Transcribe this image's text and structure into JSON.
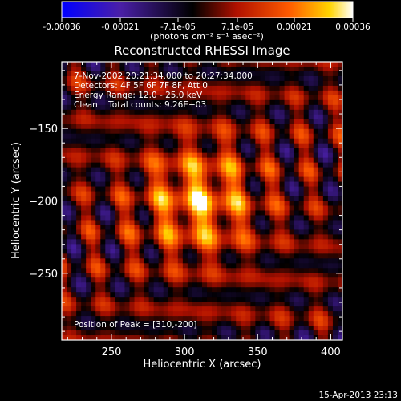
{
  "chart_data": {
    "type": "heatmap",
    "title": "Reconstructed RHESSI Image",
    "xlabel": "Heliocentric X (arcsec)",
    "ylabel": "Heliocentric Y (arcsec)",
    "xlim": [
      216,
      408
    ],
    "ylim": [
      -296,
      -104
    ],
    "x_ticks": [
      250,
      300,
      350,
      400
    ],
    "y_ticks": [
      -150,
      -200,
      -250
    ],
    "colorbar": {
      "units_label": "(photons cm⁻² s⁻¹ asec⁻²)",
      "ticks": [
        "-0.00036",
        "-0.00021",
        "-7.1e-05",
        "7.1e-05",
        "0.00021",
        "0.00036"
      ],
      "range": [
        -0.00036,
        0.00036
      ],
      "colormap": [
        "#0000ff",
        "#4a1fa8",
        "#000000",
        "#b01000",
        "#ff5a00",
        "#ffd400",
        "#ffffff"
      ]
    },
    "annotations": [
      "7-Nov-2002 20:21:34.000 to 20:27:34.000",
      "Detectors: 4F 5F 6F 7F 8F, Att 0",
      "Energy Range: 12.0 - 25.0 keV",
      "Clean    Total counts: 9.26E+03"
    ],
    "peak_label": "Position of Peak = [310,-200]",
    "peak": [
      310,
      -200
    ],
    "grid": false
  },
  "footer_timestamp": "15-Apr-2013 23:13"
}
